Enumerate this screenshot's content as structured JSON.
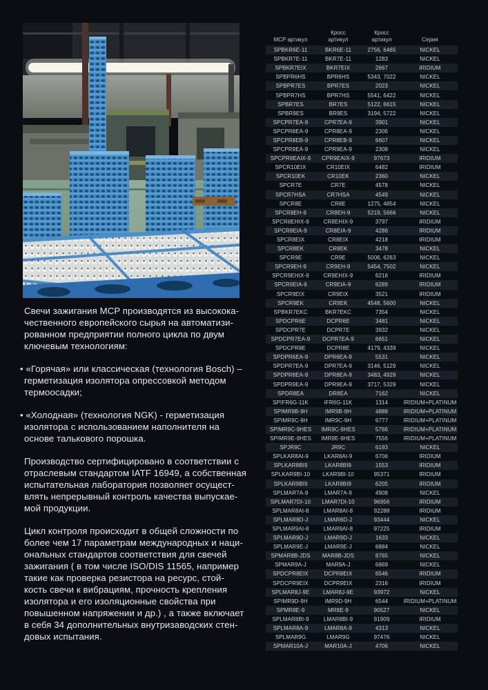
{
  "article": {
    "blocks": [
      {
        "type": "paragraph",
        "text": "Свечи зажигания MCP производятся из высокока-\nчественного европейского сырья на автоматизи-\nрованном предприятии полного цикла по двум\nключевым технологиям:"
      },
      {
        "type": "bullet",
        "text": "• «Горячая» или классическая (технология Bosch) –\nгерметизация изолятора опрессовкой методом\nтермоосадки;"
      },
      {
        "type": "bullet",
        "text": "• «Холодная» (технология NGK) - герметизация\nизолятора с использованием наполнителя на\nоснове талькового порошка."
      },
      {
        "type": "paragraph",
        "text": "Производство сертифицировано в соответствии с\nотраслевым стандартом IATF 16949, а собственная\nиспытательная лаборатория позволяет осущест-\nвлять непрерывный контроль качества выпускае-\nмой продукции."
      },
      {
        "type": "paragraph",
        "text": "Цикл контроля происходит в общей сложности по\nболее чем 17 параметрам международных и наци-\nональных стандартов соответствия для свечей\nзажигания ( в том числе ISO/DIS 11565, например\nтакие как проверка резистора на ресурс, стой-\nкость свечи к вибрациям, прочность крепления\nизолятора и его изоляционные свойства при\nповышенном напряжении и др.) , а также включает\nв себя 34 дополнительных внутризаводских стен-\nдовых испытания."
      }
    ]
  },
  "table": {
    "headers": [
      "MCP артикул",
      "Кросс\nартикул",
      "Кросс\nартикул",
      "Серия"
    ],
    "stripe_color": "#1a1f27",
    "rows": [
      [
        "SPBKR6E-11",
        "BKR6E-11",
        "2756, 6465",
        "NICKEL"
      ],
      [
        "SPBKR7E-11",
        "BKR7E-11",
        "1283",
        "NICKEL"
      ],
      [
        "SPBKR7EIX",
        "BKR7EIX",
        "2667",
        "IRIDIUM"
      ],
      [
        "SPBPR6HS",
        "BPR6HS",
        "5343, 7022",
        "NICKEL"
      ],
      [
        "SPBPR7ES",
        "BPR7ES",
        "2023",
        "NICKEL"
      ],
      [
        "SPBPR7HS",
        "BPR7HS",
        "5541, 6422",
        "NICKEL"
      ],
      [
        "SPBR7ES",
        "BR7ES",
        "5122, 6615",
        "NICKEL"
      ],
      [
        "SPBR9ES",
        "BR9ES",
        "3194, 5722",
        "NICKEL"
      ],
      [
        "SPCPR7EA-9",
        "CPR7EA-9",
        "3901",
        "NICKEL"
      ],
      [
        "SPCPR8EA-9",
        "CPR8EA-9",
        "2306",
        "NICKEL"
      ],
      [
        "SPCPR8EB-9",
        "CPR8EB-9",
        "6607",
        "NICKEL"
      ],
      [
        "SPCPR9EA-9",
        "CPR9EA-9",
        "2308",
        "NICKEL"
      ],
      [
        "SPCPR9EAIX-9",
        "CPR9EAIX-9",
        "97673",
        "IRIDIUM"
      ],
      [
        "SPCR10EIX",
        "CR10EIX",
        "6482",
        "IRIDIUM"
      ],
      [
        "SPCR10EK",
        "CR10EK",
        "2360",
        "NICKEL"
      ],
      [
        "SPCR7E",
        "CR7E",
        "4578",
        "NICKEL"
      ],
      [
        "SPCR7HSA",
        "CR7HSA",
        "4549",
        "NICKEL"
      ],
      [
        "SPCR8E",
        "CR8E",
        "1275, 4854",
        "NICKEL"
      ],
      [
        "SPCR8EH-9",
        "CR8EH-9",
        "5219, 5666",
        "NICKEL"
      ],
      [
        "SPCR8EHIX-9",
        "CR8EHIX-9",
        "3797",
        "IRIDIUM"
      ],
      [
        "SPCR8EIA-9",
        "CR8EIA-9",
        "4286",
        "IRIDIUM"
      ],
      [
        "SPCR8EIX",
        "CR8EIX",
        "4218",
        "IRIDIUM"
      ],
      [
        "SPCR8EK",
        "CR8EK",
        "3478",
        "NICKEL"
      ],
      [
        "SPCR9E",
        "CR9E",
        "5006, 6263",
        "NICKEL"
      ],
      [
        "SPCR9EH-9",
        "CR9EH-9",
        "5454, 7502",
        "NICKEL"
      ],
      [
        "SPCR9EHIX-9",
        "CR9EHIX-9",
        "6216",
        "IRIDIUM"
      ],
      [
        "SPCR9EIA-9",
        "CR9EIA-9",
        "6289",
        "IRIDIUM"
      ],
      [
        "SPCR9EIX",
        "CR9EIX",
        "3521",
        "IRIDIUM"
      ],
      [
        "SPCR9EK",
        "CR9EK",
        "4548, 5600",
        "NICKEL"
      ],
      [
        "SPBKR7EKC",
        "BKR7EKC",
        "7354",
        "NICKEL"
      ],
      [
        "SPDCPR6E",
        "DCPR6E",
        "3481",
        "NICKEL"
      ],
      [
        "SPDCPR7E",
        "DCPR7E",
        "3932",
        "NICKEL"
      ],
      [
        "SPDCPR7EA-9",
        "DCPR7EA-9",
        "6651",
        "NICKEL"
      ],
      [
        "SPDCPR8E",
        "DCPR8E",
        "4179, 4339",
        "NICKEL"
      ],
      [
        "SPDPR6EA-9",
        "DPR6EA-9",
        "5531",
        "NICKEL"
      ],
      [
        "SPDPR7EA-9",
        "DPR7EA-9",
        "3146, 5129",
        "NICKEL"
      ],
      [
        "SPDPR8EA-9",
        "DPR8EA-9",
        "3483, 4929",
        "NICKEL"
      ],
      [
        "SPDPR9EA-9",
        "DPR9EA-9",
        "3717, 5329",
        "NICKEL"
      ],
      [
        "SPDR8EA",
        "DR8EA",
        "7162",
        "NICKEL"
      ],
      [
        "SPIFR6G-11K",
        "IFR6G-11K",
        "1314",
        "IRIDIUM+PLATINUM"
      ],
      [
        "SPIMR9B-9H",
        "IMR9B-9H",
        "4888",
        "IRIDIUM+PLATINUM"
      ],
      [
        "SPIMR9C-9H",
        "IMR9C-9H",
        "6777",
        "IRIDIUM+PLATINUM"
      ],
      [
        "SPIMR9C-9HES",
        "IMR9C-9HES",
        "5766",
        "IRIDIUM+PLATINUM"
      ],
      [
        "SPIMR9E-9HES",
        "IMR9E-9HES",
        "7556",
        "IRIDIUM+PLATINUM"
      ],
      [
        "SPJR9C",
        "JR9C",
        "6193",
        "NICKEL"
      ],
      [
        "SPLKAR8AI-9",
        "LKAR8AI-9",
        "6706",
        "IRIDIUM"
      ],
      [
        "SPLKAR8BI9",
        "LKAR8BI9",
        "1553",
        "IRIDIUM"
      ],
      [
        "SPLKAR9BI-10",
        "LKAR9BI-10",
        "95371",
        "IRIDIUM"
      ],
      [
        "SPLKAR9BI9",
        "LKAR9BI9",
        "6205",
        "IRIDIUM"
      ],
      [
        "SPLMAR7A-9",
        "LMAR7A-9",
        "4908",
        "NICKEL"
      ],
      [
        "SPLMAR7DI-10",
        "LMAR7DI-10",
        "96956",
        "IRIDIUM"
      ],
      [
        "SPLMAR8AI-8",
        "LMAR8AI-8",
        "92288",
        "IRIDIUM"
      ],
      [
        "SPLMAR8D-J",
        "LMAR8D-J",
        "93444",
        "NICKEL"
      ],
      [
        "SPLMAR9AI-8",
        "LMAR9AI-8",
        "97225",
        "IRIDIUM"
      ],
      [
        "SPLMAR9D-J",
        "LMAR9D-J",
        "1633",
        "NICKEL"
      ],
      [
        "SPLMAR9E-J",
        "LMAR9E-J",
        "6884",
        "NICKEL"
      ],
      [
        "SPMAR8B-JDS",
        "MAR8B-JDS",
        "8765",
        "NICKEL"
      ],
      [
        "SPMAR9A-J",
        "MAR9A-J",
        "6869",
        "NICKEL"
      ],
      [
        "SPDCPR8EIX",
        "DCPR8EIX",
        "6546",
        "IRIDIUM"
      ],
      [
        "SPDCPR9EIX",
        "DCPR9EIX",
        "2316",
        "IRIDIUM"
      ],
      [
        "SPLMAR8J-9E",
        "LMAR8J-9E",
        "93972",
        "NICKEL"
      ],
      [
        "SPIMR9D-9H",
        "IMR9D-9H",
        "6544",
        "IRIDIUM+PLATINUM"
      ],
      [
        "SPMR8E-9",
        "MR8E-9",
        "90527",
        "NICKEL"
      ],
      [
        "SPLMAR8BI-9",
        "LMAR8BI-9",
        "91909",
        "IRIDIUM"
      ],
      [
        "SPLMAR8A-9",
        "LMAR8A-9",
        "4313",
        "NICKEL"
      ],
      [
        "SPLMAR9G",
        "LMAR9G",
        "97476",
        "NICKEL"
      ],
      [
        "SPMAR10A-J",
        "MAR10A-J",
        "4706",
        "NICKEL"
      ]
    ]
  },
  "colors": {
    "page_bg": "#0a0d12",
    "row_stripe": "#1a1f27",
    "body_text": "#e7e9ea",
    "table_text": "#ced2d6"
  }
}
